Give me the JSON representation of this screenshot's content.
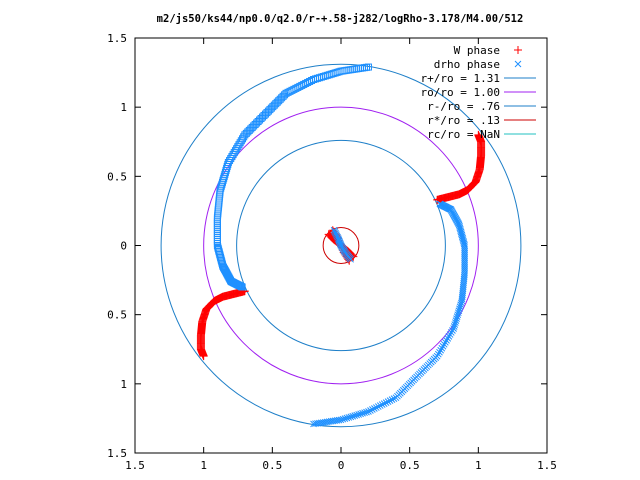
{
  "chart_data": {
    "type": "scatter",
    "title": "m2/js50/ks44/np0.0/q2.0/r-+.58-j282/logRho-3.178/M4.00/512",
    "xlabel": "",
    "ylabel": "",
    "xlim": [
      -1.5,
      1.5
    ],
    "ylim": [
      -1.5,
      1.5
    ],
    "x_tick_labels": [
      "1.5",
      "1",
      "0.5",
      "0",
      "0.5",
      "1",
      "1.5"
    ],
    "y_tick_labels": [
      "1.5",
      "1",
      "0.5",
      "0",
      "0.5",
      "1",
      "1.5"
    ],
    "tick_values": [
      -1.5,
      -1.0,
      -0.5,
      0,
      0.5,
      1.0,
      1.5
    ],
    "grid": false,
    "legend_position": "top-right",
    "series": [
      {
        "name": "W phase",
        "kind": "points",
        "marker": "plus",
        "color": "#ff0000",
        "arms": [
          [
            [
              0.7,
              0.33
            ],
            [
              0.78,
              0.35
            ],
            [
              0.86,
              0.37
            ],
            [
              0.92,
              0.4
            ],
            [
              0.98,
              0.46
            ],
            [
              1.01,
              0.55
            ],
            [
              1.02,
              0.65
            ],
            [
              1.02,
              0.75
            ],
            [
              1.0,
              0.8
            ]
          ],
          [
            [
              -0.7,
              -0.33
            ],
            [
              -0.78,
              -0.35
            ],
            [
              -0.86,
              -0.37
            ],
            [
              -0.92,
              -0.4
            ],
            [
              -0.98,
              -0.46
            ],
            [
              -1.01,
              -0.55
            ],
            [
              -1.02,
              -0.65
            ],
            [
              -1.02,
              -0.75
            ],
            [
              -1.0,
              -0.8
            ]
          ],
          [
            [
              -0.09,
              0.08
            ],
            [
              -0.05,
              0.04
            ],
            [
              0.0,
              0.0
            ],
            [
              0.05,
              -0.04
            ],
            [
              0.09,
              -0.08
            ]
          ],
          [
            [
              -0.06,
              0.11
            ],
            [
              -0.02,
              0.05
            ],
            [
              0.02,
              -0.05
            ],
            [
              0.06,
              -0.11
            ]
          ]
        ]
      },
      {
        "name": "drho phase",
        "kind": "points",
        "marker": "cross",
        "color": "#1e90ff",
        "arms": [
          [
            [
              0.72,
              0.3
            ],
            [
              0.8,
              0.26
            ],
            [
              0.86,
              0.15
            ],
            [
              0.9,
              0.0
            ],
            [
              0.9,
              -0.2
            ],
            [
              0.88,
              -0.4
            ],
            [
              0.82,
              -0.6
            ],
            [
              0.7,
              -0.8
            ],
            [
              0.55,
              -0.95
            ],
            [
              0.4,
              -1.1
            ],
            [
              0.2,
              -1.2
            ],
            [
              0.0,
              -1.26
            ],
            [
              -0.2,
              -1.29
            ]
          ],
          [
            [
              -0.05,
              0.11
            ],
            [
              -0.02,
              0.05
            ],
            [
              0.0,
              0.0
            ],
            [
              0.03,
              -0.05
            ],
            [
              0.07,
              -0.1
            ]
          ]
        ]
      },
      {
        "name": "drho phase",
        "kind": "points",
        "marker": "square",
        "color": "#1e90ff",
        "arms": [
          [
            [
              -0.72,
              -0.3
            ],
            [
              -0.8,
              -0.26
            ],
            [
              -0.86,
              -0.15
            ],
            [
              -0.9,
              0.0
            ],
            [
              -0.9,
              0.2
            ],
            [
              -0.88,
              0.4
            ],
            [
              -0.82,
              0.6
            ],
            [
              -0.7,
              0.8
            ],
            [
              -0.55,
              0.95
            ],
            [
              -0.4,
              1.1
            ],
            [
              -0.2,
              1.2
            ],
            [
              0.0,
              1.26
            ],
            [
              0.2,
              1.29
            ]
          ]
        ]
      },
      {
        "name": "r+/ro = 1.31",
        "kind": "circle",
        "radius": 1.31,
        "color": "#1e7fc8"
      },
      {
        "name": "ro/ro = 1.00",
        "kind": "circle",
        "radius": 1.0,
        "color": "#a020f0"
      },
      {
        "name": "r-/ro = .76",
        "kind": "circle",
        "radius": 0.76,
        "color": "#1e7fc8"
      },
      {
        "name": "r*/ro = .13",
        "kind": "circle",
        "radius": 0.13,
        "color": "#cc0000"
      },
      {
        "name": "rc/ro = NaN",
        "kind": "circle",
        "radius": null,
        "color": "#20c0c0"
      }
    ],
    "legend": [
      {
        "label": "W phase",
        "symbol": "plus",
        "color": "#ff0000"
      },
      {
        "label": "drho phase",
        "symbol": "cross",
        "color": "#1e90ff"
      },
      {
        "label": "r+/ro = 1.31",
        "symbol": "line",
        "color": "#1e7fc8"
      },
      {
        "label": "ro/ro = 1.00",
        "symbol": "line",
        "color": "#a020f0"
      },
      {
        "label": "r-/ro = .76",
        "symbol": "line",
        "color": "#1e7fc8"
      },
      {
        "label": "r*/ro = .13",
        "symbol": "line",
        "color": "#cc0000"
      },
      {
        "label": "rc/ro = NaN",
        "symbol": "line",
        "color": "#20c0c0"
      }
    ]
  }
}
